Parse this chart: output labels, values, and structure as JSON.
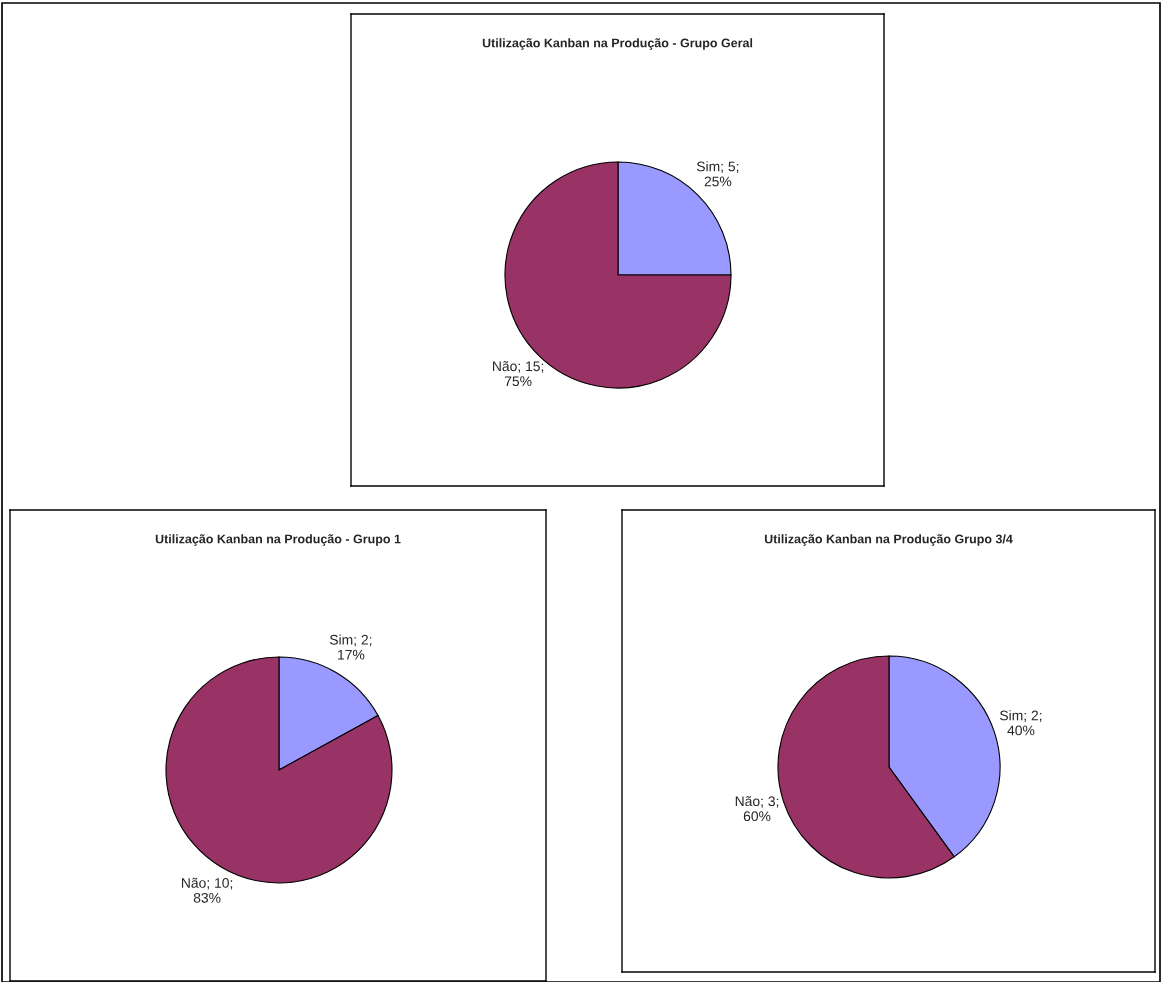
{
  "chart_data": [
    {
      "type": "pie",
      "title": "Utilização Kanban na Produção - Grupo Geral",
      "categories": [
        "Sim",
        "Não"
      ],
      "values": [
        25,
        75
      ],
      "colors": [
        "#9999ff",
        "#993366"
      ],
      "value_labels": [
        "5;\n25%",
        "15;\n75%"
      ]
    },
    {
      "type": "pie",
      "title": "Utilização Kanban na Produção - Grupo 1",
      "categories": [
        "Sim",
        "Não"
      ],
      "values": [
        17,
        83
      ],
      "colors": [
        "#9999ff",
        "#993366"
      ],
      "value_labels": [
        "2;\n17%",
        "10;\n83%"
      ]
    },
    {
      "type": "pie",
      "title": "Utilização Kanban na Produção Grupo 3/4",
      "categories": [
        "Sim",
        "Não"
      ],
      "values": [
        40,
        60
      ],
      "colors": [
        "#9999ff",
        "#993366"
      ],
      "value_labels": [
        "2;\n40%",
        "3;\n60%"
      ]
    }
  ]
}
